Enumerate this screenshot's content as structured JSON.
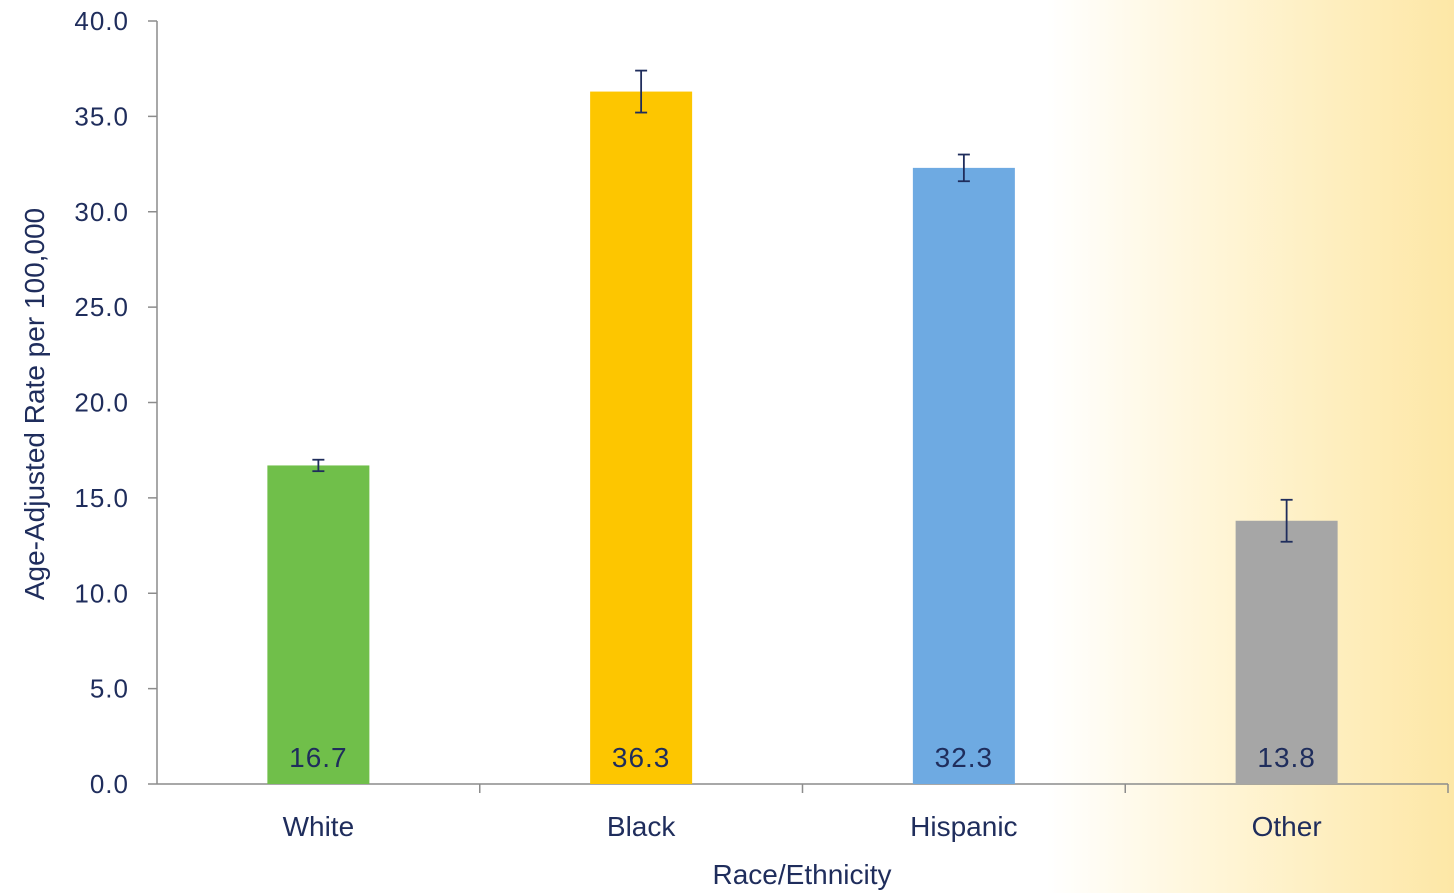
{
  "chart_data": {
    "type": "bar",
    "xlabel": "Race/Ethnicity",
    "ylabel": "Age-Adjusted Rate per 100,000",
    "ylim": [
      0,
      40
    ],
    "ytick_step": 5,
    "ytick_labels": [
      "0.0",
      "5.0",
      "10.0",
      "15.0",
      "20.0",
      "25.0",
      "30.0",
      "35.0",
      "40.0"
    ],
    "grid": false,
    "categories": [
      "White",
      "Black",
      "Hispanic",
      "Other"
    ],
    "values": [
      16.7,
      36.3,
      32.3,
      13.8
    ],
    "data_labels": [
      "16.7",
      "36.3",
      "32.3",
      "13.8"
    ],
    "error_low": [
      16.4,
      35.2,
      31.6,
      12.7
    ],
    "error_high": [
      17.0,
      37.4,
      33.0,
      14.9
    ],
    "colors": [
      "#70bf4a",
      "#fdc600",
      "#6eaae2",
      "#a6a6a6"
    ],
    "axis_color": "#8c8c8c",
    "text_color": "#1f2d5c"
  }
}
